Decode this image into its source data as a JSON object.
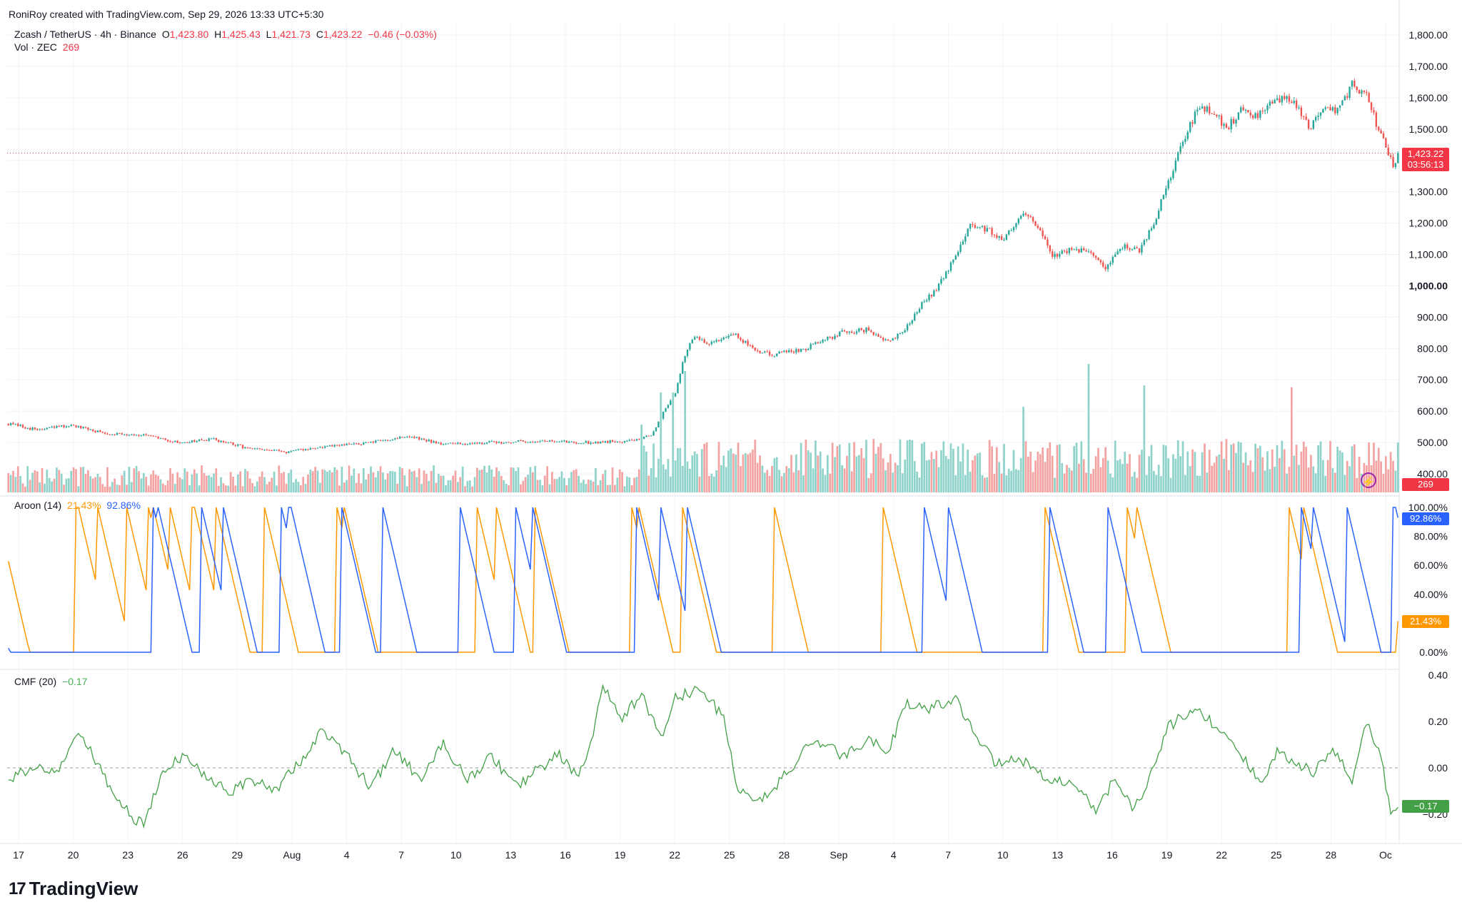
{
  "header": {
    "credit": "RoniRoy created with TradingView.com, Sep 29, 2026 13:33 UTC+5:30"
  },
  "legend": {
    "symbol": "Zcash / TetherUS · 4h · Binance",
    "o_label": "O",
    "o_value": "1,423.80",
    "h_label": "H",
    "h_value": "1,425.43",
    "l_label": "L",
    "l_value": "1,421.73",
    "c_label": "C",
    "c_value": "1,423.22",
    "change": "−0.46 (−0.03%)",
    "vol_label": "Vol · ZEC",
    "vol_value": "269",
    "aroon_label": "Aroon (14)",
    "aroon_down": "21.43%",
    "aroon_up": "92.86%",
    "cmf_label": "CMF (20)",
    "cmf_value": "−0.17"
  },
  "price_tags": {
    "last_price": "1,423.22",
    "countdown": "03:56:13",
    "volume": "269",
    "aroon_up": "92.86%",
    "aroon_down": "21.43%",
    "cmf": "−0.17"
  },
  "colors": {
    "up": "#26a69a",
    "down": "#ef5350",
    "vol_up": "#8fd3cb",
    "vol_down": "#f4a3a3",
    "aroon_up": "#2962ff",
    "aroon_down": "#ff9800",
    "cmf": "#43a047"
  },
  "footer": {
    "brand": "TradingView"
  },
  "chart_data": [
    {
      "type": "candlestick",
      "title": "Zcash / TetherUS · 4h · Binance",
      "ylim": [
        330,
        1830
      ],
      "y_ticks": [
        "400.00",
        "500.00",
        "600.00",
        "700.00",
        "800.00",
        "900.00",
        "1,000.00",
        "1,100.00",
        "1,200.00",
        "1,300.00",
        "1,400.00",
        "1,500.00",
        "1,600.00",
        "1,700.00",
        "1,800.00"
      ],
      "x_ticks": [
        "17",
        "20",
        "23",
        "26",
        "29",
        "Aug",
        "4",
        "7",
        "10",
        "13",
        "16",
        "19",
        "22",
        "25",
        "28",
        "Sep",
        "4",
        "7",
        "10",
        "13",
        "16",
        "19",
        "22",
        "25",
        "28",
        "Oc"
      ],
      "close_anchors": [
        [
          0,
          560
        ],
        [
          12,
          540
        ],
        [
          25,
          555
        ],
        [
          40,
          530
        ],
        [
          55,
          525
        ],
        [
          70,
          500
        ],
        [
          85,
          510
        ],
        [
          100,
          480
        ],
        [
          115,
          470
        ],
        [
          130,
          485
        ],
        [
          150,
          500
        ],
        [
          165,
          520
        ],
        [
          180,
          495
        ],
        [
          200,
          500
        ],
        [
          220,
          505
        ],
        [
          240,
          500
        ],
        [
          256,
          505
        ],
        [
          266,
          520
        ],
        [
          270,
          580
        ],
        [
          276,
          660
        ],
        [
          280,
          780
        ],
        [
          284,
          840
        ],
        [
          290,
          810
        ],
        [
          300,
          850
        ],
        [
          308,
          800
        ],
        [
          316,
          780
        ],
        [
          330,
          800
        ],
        [
          345,
          850
        ],
        [
          355,
          860
        ],
        [
          365,
          820
        ],
        [
          372,
          870
        ],
        [
          378,
          940
        ],
        [
          385,
          1000
        ],
        [
          392,
          1100
        ],
        [
          398,
          1200
        ],
        [
          405,
          1180
        ],
        [
          412,
          1150
        ],
        [
          420,
          1240
        ],
        [
          427,
          1180
        ],
        [
          432,
          1090
        ],
        [
          440,
          1120
        ],
        [
          448,
          1100
        ],
        [
          454,
          1060
        ],
        [
          462,
          1130
        ],
        [
          468,
          1110
        ],
        [
          474,
          1200
        ],
        [
          480,
          1330
        ],
        [
          486,
          1460
        ],
        [
          492,
          1560
        ],
        [
          498,
          1560
        ],
        [
          504,
          1500
        ],
        [
          510,
          1560
        ],
        [
          516,
          1540
        ],
        [
          522,
          1590
        ],
        [
          528,
          1600
        ],
        [
          533,
          1580
        ],
        [
          538,
          1500
        ],
        [
          544,
          1570
        ],
        [
          550,
          1560
        ],
        [
          556,
          1640
        ],
        [
          562,
          1610
        ],
        [
          566,
          1520
        ],
        [
          570,
          1440
        ],
        [
          573,
          1380
        ],
        [
          575,
          1423
        ]
      ],
      "last_close": 1423.22
    },
    {
      "type": "bar",
      "title": "Vol · ZEC",
      "last_value": 269,
      "spikes": [
        [
          262,
          320
        ],
        [
          280,
          520
        ],
        [
          447,
          720
        ],
        [
          470,
          700
        ],
        [
          531,
          430
        ]
      ]
    },
    {
      "type": "line",
      "title": "Aroon (14)",
      "ylim": [
        0,
        100
      ],
      "y_ticks": [
        "0.00%",
        "20.00%",
        "40.00%",
        "60.00%",
        "80.00%",
        "100.00%"
      ],
      "series": [
        {
          "name": "Aroon Down",
          "last_value": 21.43
        },
        {
          "name": "Aroon Up",
          "last_value": 92.86
        }
      ]
    },
    {
      "type": "line",
      "title": "CMF (20)",
      "ylim": [
        -0.33,
        0.41
      ],
      "y_ticks": [
        "−0.20",
        "0.00",
        "0.20",
        "0.40"
      ],
      "anchors": [
        [
          0,
          -0.05
        ],
        [
          10,
          0.0
        ],
        [
          20,
          -0.02
        ],
        [
          30,
          0.15
        ],
        [
          40,
          -0.05
        ],
        [
          50,
          -0.2
        ],
        [
          56,
          -0.25
        ],
        [
          64,
          -0.02
        ],
        [
          72,
          0.05
        ],
        [
          82,
          -0.03
        ],
        [
          92,
          -0.1
        ],
        [
          100,
          -0.05
        ],
        [
          110,
          -0.1
        ],
        [
          120,
          0.02
        ],
        [
          130,
          0.16
        ],
        [
          140,
          0.05
        ],
        [
          150,
          -0.08
        ],
        [
          160,
          0.08
        ],
        [
          170,
          -0.05
        ],
        [
          180,
          0.1
        ],
        [
          190,
          -0.05
        ],
        [
          200,
          0.05
        ],
        [
          210,
          -0.08
        ],
        [
          220,
          0.0
        ],
        [
          228,
          0.06
        ],
        [
          236,
          -0.05
        ],
        [
          242,
          0.15
        ],
        [
          246,
          0.35
        ],
        [
          254,
          0.2
        ],
        [
          262,
          0.33
        ],
        [
          270,
          0.12
        ],
        [
          276,
          0.3
        ],
        [
          286,
          0.34
        ],
        [
          296,
          0.22
        ],
        [
          302,
          -0.1
        ],
        [
          310,
          -0.15
        ],
        [
          320,
          -0.05
        ],
        [
          330,
          0.08
        ],
        [
          338,
          0.1
        ],
        [
          346,
          0.05
        ],
        [
          356,
          0.12
        ],
        [
          364,
          0.08
        ],
        [
          372,
          0.28
        ],
        [
          380,
          0.25
        ],
        [
          392,
          0.3
        ],
        [
          400,
          0.15
        ],
        [
          408,
          0.02
        ],
        [
          416,
          0.05
        ],
        [
          424,
          0.0
        ],
        [
          432,
          -0.05
        ],
        [
          442,
          -0.08
        ],
        [
          450,
          -0.18
        ],
        [
          458,
          -0.05
        ],
        [
          466,
          -0.18
        ],
        [
          474,
          0.0
        ],
        [
          480,
          0.18
        ],
        [
          486,
          0.22
        ],
        [
          494,
          0.24
        ],
        [
          502,
          0.15
        ],
        [
          510,
          0.05
        ],
        [
          518,
          -0.06
        ],
        [
          526,
          0.08
        ],
        [
          532,
          0.02
        ],
        [
          540,
          -0.02
        ],
        [
          548,
          0.08
        ],
        [
          556,
          -0.05
        ],
        [
          562,
          0.2
        ],
        [
          568,
          0.05
        ],
        [
          572,
          -0.2
        ],
        [
          575,
          -0.17
        ]
      ],
      "last_value": -0.17
    }
  ]
}
